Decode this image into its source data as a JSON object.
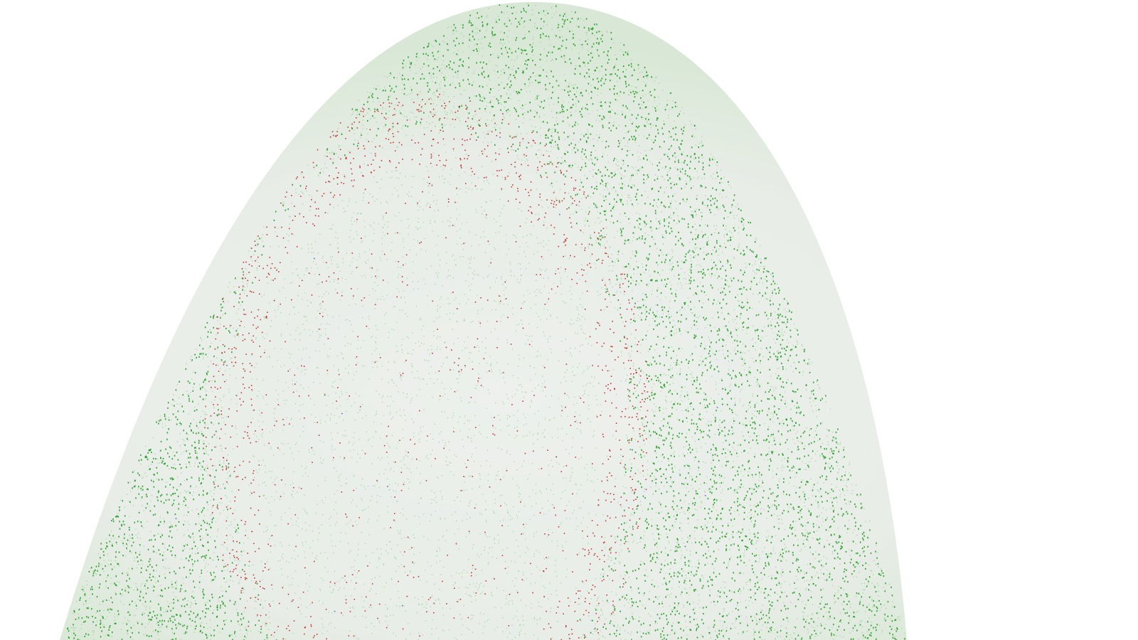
{
  "scene": {
    "background_color": "#ffffff",
    "surface_color": "#e6ebe6",
    "point_colors": {
      "high": "#1a9a1a",
      "mid": "#7cc47c",
      "low": "#c01818",
      "rare": "#3a5fb0"
    },
    "point_classes": [
      "high",
      "mid",
      "low",
      "rare"
    ]
  }
}
